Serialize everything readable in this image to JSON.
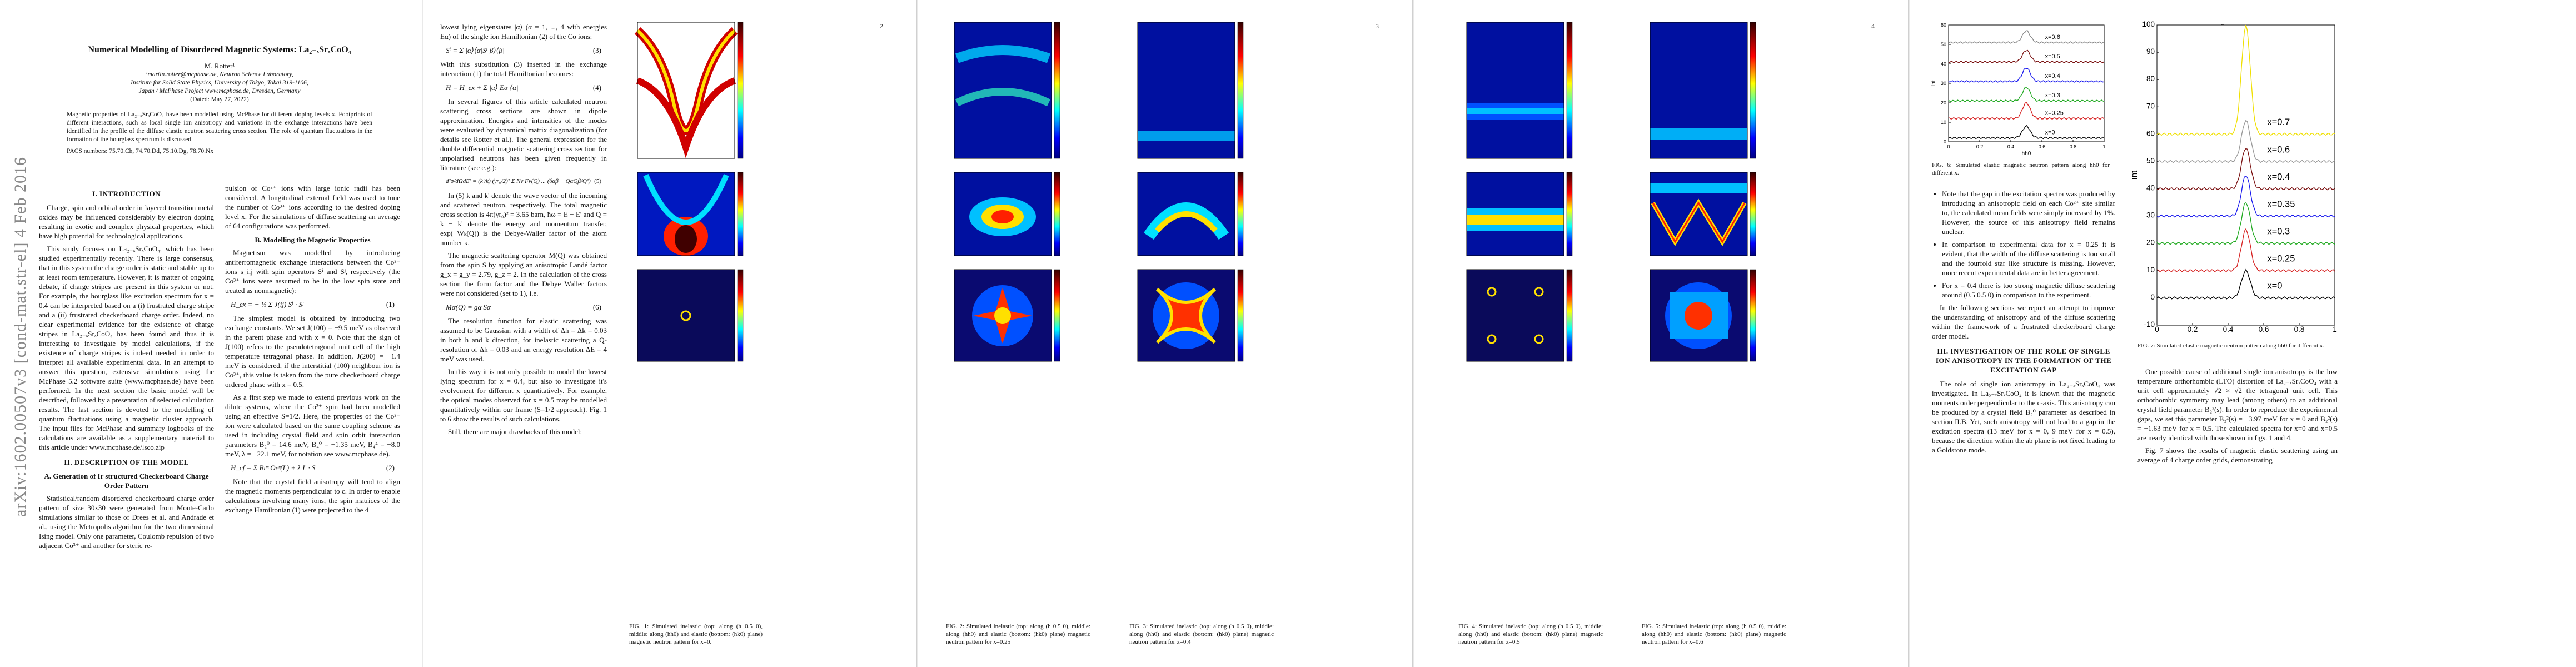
{
  "pages": {
    "p1": {
      "arxiv_stamp": "arXiv:1602.00507v3  [cond-mat.str-el]  4 Feb 2016",
      "title": "Numerical Modelling of Disordered Magnetic Systems: La₂₋ₓSrₓCoO₄",
      "author": "M. Rotter¹",
      "affil1": "¹martin.rotter@mcphase.de, Neutron Science Laboratory,",
      "affil2": "Institute for Solid State Physics, University of Tokyo, Tokai 319-1106,",
      "affil3": "Japan / McPhase Project www.mcphase.de, Dresden, Germany",
      "dated": "(Dated: May 27, 2022)",
      "abstract": "Magnetic properties of La₂₋ₓSrₓCoO₄ have been modelled using McPhase for different doping levels x. Footprints of different interactions, such as local single ion anisotropy and variations in the exchange interactions have been identified in the profile of the diffuse elastic neutron scattering cross section. The role of quantum fluctuations in the formation of the hourglass spectrum is discussed.",
      "pacs": "PACS numbers: 75.70.Ch, 74.70.Dd, 75.10.Dg, 78.70.Nx",
      "sec1": "I.   INTRODUCTION",
      "intro_p1": "Charge, spin and orbital order in layered transition metal oxides may be influenced considerably by electron doping resulting in exotic and complex physical properties, which have high potential for technological applications.",
      "intro_p2": "This study focuses on La₂₋ₓSrₓCoO₄, which has been studied experimentally recently. There is large consensus, that in this system the charge order is static and stable up to at least room temperature. However, it is matter of ongoing debate, if charge stripes are present in this system or not. For example, the hourglass like excitation spectrum for x = 0.4 can be interpreted based on a (i) frustrated charge stripe and a (ii) frustrated checkerboard charge order. Indeed, no clear experimental evidence for the existence of charge stripes in La₂₋ₓSrₓCoO₄ has been found and thus it is interesting to investigate by model calculations, if the existence of charge stripes is indeed needed in order to interpret all available experimental data. In an attempt to answer this question, extensive simulations using the McPhase 5.2 software suite (www.mcphase.de) have been performed. In the next section the basic model will be described, followed by a presentation of selected calculation results. The last section is devoted to the modelling of quantum fluctuations using a magnetic cluster approach. The input files for McPhase and summary logbooks of the calculations are available as a supplementary material to this article under www.mcphase.de/lsco.zip",
      "sec2": "II.   DESCRIPTION OF THE MODEL",
      "subA": "A.   Generation of Ir structured Checkerboard Charge Order Pattern",
      "model_p1": "Statistical/random disordered checkerboard charge order pattern of size 30x30 were generated from Monte-Carlo simulations similar to those of Drees et al. and Andrade et al., using the Metropolis algorithm for the two dimensional Ising model. Only one parameter, Coulomb repulsion of two adjacent Co³⁺ and another for steric re-",
      "col2_p1": "pulsion of Co²⁺ ions with large ionic radii has been considered. A longitudinal external field was used to tune the number of Co³⁺ ions according to the desired doping level x. For the simulations of diffuse scattering an average of 64 configurations was performed.",
      "subB": "B.   Modelling the Magnetic Properties",
      "col2_p2": "Magnetism was modelled by introducing antiferromagnetic exchange interactions between the Co²⁺ ions s_i,j with spin operators Sⁱ and Sʲ, respectively (the Co³⁺ ions were assumed to be in the low spin state and treated as nonmagnetic):",
      "eq1": "H_ex = − ½ Σ J(ij) Sⁱ · Sʲ",
      "eq1_num": "(1)",
      "col2_p3": "The simplest model is obtained by introducing two exchange constants. We set J(100) = −9.5 meV as observed in the parent phase and with x = 0. Note that the sign of J(100) refers to the pseudotetragonal unit cell of the high temperature tetragonal phase. In addition, J(200) = −1.4 meV is considered, if the interstitial (100) neighbour ion is Co³⁺, this value is taken from the pure checkerboard charge ordered phase with x = 0.5.",
      "col2_p4": "As a first step we made to extend previous work on the dilute systems, where the Co²⁺ spin had been modelled using an effective S=1/2. Here, the properties of the Co²⁺ ion were calculated based on the same coupling scheme as used in including crystal field and spin orbit interaction parameters B₂⁰ = 14.6 meV, B₄⁰ = −1.35 meV, B₄⁴ = −8.0 meV, λ = −22.1 meV, for notation see www.mcphase.de).",
      "eq2": "H_cf = Σ Bₗᵐ Oₗᵐ(L) + λ L · S",
      "eq2_num": "(2)",
      "col2_p5": "Note that the crystal field anisotropy will tend to align the magnetic moments perpendicular to c. In order to enable calculations involving many ions, the spin matrices of the exchange Hamiltonian (1) were projected to the 4"
    },
    "p2": {
      "page_number": "2",
      "col1_p1": "lowest lying eigenstates |α⟩ (α = 1, ..., 4 with energies Eα) of the single ion Hamiltonian (2) of the Co ions:",
      "eq3": "Sⁱ = Σ |α⟩⟨α|Sⁱ|β⟩⟨β|",
      "eq3_num": "(3)",
      "col1_p2": "With this substitution (3) inserted in the exchange interaction (1) the total Hamiltonian becomes:",
      "eq4": "H = H_ex + Σ |α⟩ Eα ⟨α|",
      "eq4_num": "(4)",
      "col1_p3": "In several figures of this article calculated neutron scattering cross sections are shown in dipole approximation. Energies and intensities of the modes were evaluated by dynamical matrix diagonalization (for details see Rotter et al.). The general expression for the double differential magnetic scattering cross section for unpolarised neutrons has been given frequently in literature (see e.g.):",
      "eq5": "d²σ/dΩdE' = (k'/k) (γr₀/2)² Σ Nν Fν(Q) ... (δαβ − QαQβ/Q²)",
      "eq5_num": "(5)",
      "col1_p4": "In (5) k and k' denote the wave vector of the incoming and scattered neutron, respectively. The total magnetic cross section is 4π(γr₀)² = 3.65 barn, ħω = E − E' and Q = k − k' denote the energy and momentum transfer, exp(−Wₖ(Q)) is the Debye-Waller factor of the atom number κ.",
      "col1_p5": "The magnetic scattering operator M(Q) was obtained from the spin S by applying an anisotropic Landé factor g_x = g_y = 2.79, g_z = 2. In the calculation of the cross section the form factor and the Debye Waller factors were not considered (set to 1), i.e.",
      "eq6": "Mα(Q) = gα Sα",
      "eq6_num": "(6)",
      "col1_p6": "The resolution function for elastic scattering was assumed to be Gaussian with a width of Δh = Δk = 0.03 in both h and k direction, for inelastic scattering a Q-resolution of Δh = 0.03 and an energy resolution ΔE = 4 meV was used.",
      "col1_p7": "In this way it is not only possible to model the lowest lying spectrum for x = 0.4, but also to investigate it's evolvement for different x quantitatively. For example, the optical modes observed for x = 0.5 may be modelled quantitatively within our frame (S=1/2 approach). Fig. 1 to 6 show the results of such calculations.",
      "col1_p8": "Still, there are major drawbacks of this model:",
      "fig1_caption": "FIG. 1: Simulated inelastic (top: along (h 0.5 0), middle: along (hh0) and elastic (bottom: (hk0) plane) magnetic neutron pattern for x=0."
    },
    "p3": {
      "page_number": "3",
      "fig2_caption": "FIG. 2: Simulated inelastic (top: along (h 0.5 0), middle: along (hh0) and elastic (bottom: (hk0) plane) magnetic neutron pattern for x=0.25",
      "fig3_caption": "FIG. 3: Simulated inelastic (top: along (h 0.5 0), middle: along (hh0) and elastic (bottom: (hk0) plane) magnetic neutron pattern for x=0.4"
    },
    "p4": {
      "page_number": "4",
      "fig4_caption": "FIG. 4: Simulated inelastic (top: along (h 0.5 0), middle: along (hh0) and elastic (bottom: (hk0) plane) magnetic neutron pattern for x=0.5",
      "fig5_caption": "FIG. 5: Simulated inelastic (top: along (h 0.5 0), middle: along (hh0) and elastic (bottom: (hk0) plane) magnetic neutron pattern for x=0.6"
    },
    "p5": {
      "page_number": "5",
      "fig6_caption": "FIG. 6: Simulated elastic magnetic neutron pattern along hh0 for different x.",
      "bullet1": "Note that the gap in the excitation spectra was produced by introducing an anisotropic field on each Co²⁺ site similar to, the calculated mean fields were simply increased by 1%. However, the source of this anisotropy field remains unclear.",
      "bullet2": "In comparison to experimental data for x = 0.25 it is evident, that the width of the diffuse scattering is too small and the fourfold star like structure is missing. However, more recent experimental data are in better agreement.",
      "bullet3": "For x = 0.4 there is too strong magnetic diffuse scattering around (0.5 0.5 0) in comparison to the experiment.",
      "p_follow": "In the following sections we report an attempt to improve the understanding of anisotropy and of the diffuse scattering within the framework of a frustrated checkerboard charge order model.",
      "sec3": "III.   INVESTIGATION OF THE ROLE OF SINGLE ION ANISOTROPY IN THE FORMATION OF THE EXCITATION GAP",
      "p_sec3": "The role of single ion anisotropy in La₂₋ₓSrₓCoO₄ was investigated. In La₂₋ₓSrₓCoO₄ it is known that the magnetic moments order perpendicular to the c-axis. This anisotropy can be produced by a crystal field B₂⁰ parameter as described in section II.B. Yet, such anisotropy will not lead to a gap in the excitation spectra (13 meV for x = 0, 9 meV for x = 0.5), because the direction within the ab plane is not fixed leading to a Goldstone mode."
    },
    "p6": {
      "fig7_caption": "FIG. 7: Simulated elastic magnetic neutron pattern along hh0 for different x.",
      "p1": "One possible cause of additional single ion anisotropy is the low temperature orthorhombic (LTO) distortion of La₂₋ₓSrₓCoO₄ with a unit cell approximately √2 × √2 the tetragonal unit cell. This orthorhombic symmetry may lead (among others) to an additional crystal field parameter B₂²(s). In order to reproduce the experimental gaps, we set this parameter B₂²(s) = −3.97 meV for x = 0 and B₂²(s) = −1.63 meV for x = 0.5. The calculated spectra for x=0 and x=0.5 are nearly identical with those shown in figs. 1 and 4.",
      "p2": "Fig. 7 shows the results of magnetic elastic scattering using an average of 4 charge order grids, demonstrating"
    }
  },
  "chart_data": [
    {
      "type": "line",
      "title": "",
      "xlabel": "hh0",
      "ylabel": "Int",
      "xlim": [
        0,
        1
      ],
      "ylim": [
        0,
        60
      ],
      "xticks": [
        "0",
        "0.2",
        "0.4",
        "0.6",
        "0.8",
        "1"
      ],
      "yticks": [
        "0",
        "10",
        "20",
        "30",
        "40",
        "50",
        "60"
      ],
      "series": [
        {
          "name": "x=0",
          "color": "#000000",
          "baseline": 2,
          "peak": 8,
          "center": 0.5
        },
        {
          "name": "x=0.25",
          "color": "#d62020",
          "baseline": 12,
          "peak": 20,
          "center": 0.5
        },
        {
          "name": "x=0.3",
          "color": "#22aa22",
          "baseline": 21,
          "peak": 28,
          "center": 0.5
        },
        {
          "name": "x=0.4",
          "color": "#1a1aee",
          "baseline": 31,
          "peak": 38,
          "center": 0.5
        },
        {
          "name": "x=0.5",
          "color": "#7a1010",
          "baseline": 41,
          "peak": 47,
          "center": 0.5
        },
        {
          "name": "x=0.6",
          "color": "#888888",
          "baseline": 51,
          "peak": 57,
          "center": 0.5
        }
      ]
    },
    {
      "type": "line",
      "title": "",
      "xlabel": "",
      "ylabel": "Int",
      "xlim": [
        0,
        1
      ],
      "ylim": [
        -10,
        100
      ],
      "xticks": [
        "0",
        "0.2",
        "0.4",
        "0.6",
        "0.8",
        "1"
      ],
      "yticks": [
        "-10",
        "0",
        "10",
        "20",
        "30",
        "40",
        "50",
        "60",
        "70",
        "80",
        "90",
        "100"
      ],
      "series": [
        {
          "name": "x=0",
          "color": "#000000",
          "baseline": 0,
          "peak": 10,
          "center": 0.5
        },
        {
          "name": "x=0.25",
          "color": "#d62020",
          "baseline": 10,
          "peak": 25,
          "center": 0.5
        },
        {
          "name": "x=0.3",
          "color": "#22aa22",
          "baseline": 20,
          "peak": 35,
          "center": 0.5
        },
        {
          "name": "x=0.35",
          "color": "#1a1aee",
          "baseline": 30,
          "peak": 45,
          "center": 0.5
        },
        {
          "name": "x=0.4",
          "color": "#7a1010",
          "baseline": 40,
          "peak": 55,
          "center": 0.5
        },
        {
          "name": "x=0.6",
          "color": "#999999",
          "baseline": 50,
          "peak": 65,
          "center": 0.5
        },
        {
          "name": "x=0.7",
          "color": "#f0e000",
          "baseline": 60,
          "peak": 100,
          "center": 0.5
        }
      ]
    }
  ]
}
